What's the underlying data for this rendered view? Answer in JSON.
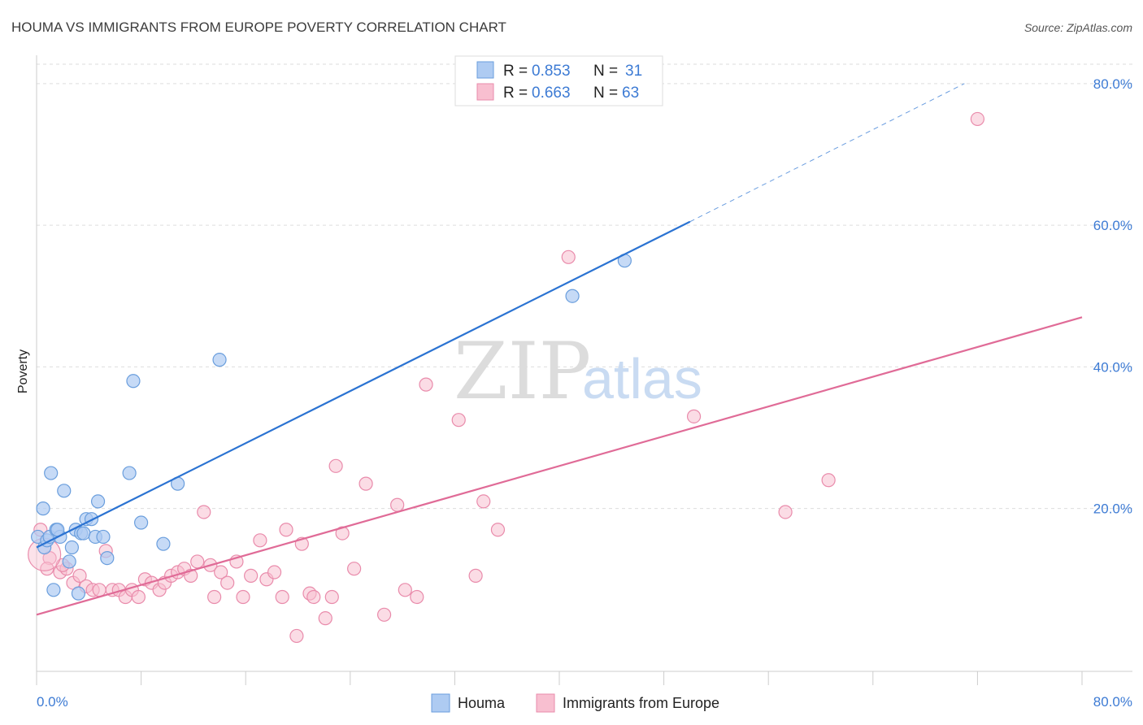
{
  "chart_data": {
    "type": "scatter",
    "title": "HOUMA VS IMMIGRANTS FROM EUROPE POVERTY CORRELATION CHART",
    "source": "Source: ZipAtlas.com",
    "ylabel": "Poverty",
    "xlim": [
      0,
      80
    ],
    "ylim": [
      -3,
      84
    ],
    "x_tick_labels": [
      "0.0%",
      "80.0%"
    ],
    "y_ticks": [
      20,
      40,
      60,
      80
    ],
    "y_tick_labels": [
      "20.0%",
      "40.0%",
      "60.0%",
      "80.0%"
    ],
    "watermark": {
      "zip": "ZIP",
      "atlas": "atlas"
    },
    "colors": {
      "houma_fill": "#aecbf2",
      "houma_stroke": "#6a9edd",
      "houma_line": "#2b73d2",
      "europe_fill": "#f8bfd0",
      "europe_stroke": "#e98bab",
      "europe_line": "#e06b97",
      "value_text": "#3d7bd4"
    },
    "legend": {
      "rows": [
        {
          "r_label": "R = ",
          "r_value": "0.853",
          "n_label": "N = ",
          "n_value": "31"
        },
        {
          "r_label": "R = ",
          "r_value": "0.663",
          "n_label": "N = ",
          "n_value": "63"
        }
      ]
    },
    "series": [
      {
        "name": "Houma",
        "regression": {
          "x0": 0,
          "y0": 14.5,
          "x1": 50,
          "y1": 60.5,
          "dash_to_x": 71,
          "dash_to_y": 80
        },
        "points": [
          [
            0.1,
            16.0
          ],
          [
            0.5,
            20.0
          ],
          [
            0.6,
            14.5
          ],
          [
            0.8,
            15.5
          ],
          [
            1.0,
            16.0
          ],
          [
            1.1,
            25.0
          ],
          [
            1.3,
            8.5
          ],
          [
            1.5,
            17.0
          ],
          [
            1.8,
            16.0
          ],
          [
            2.1,
            22.5
          ],
          [
            2.5,
            12.5
          ],
          [
            2.7,
            14.5
          ],
          [
            3.0,
            17.0
          ],
          [
            3.2,
            8.0
          ],
          [
            3.4,
            16.5
          ],
          [
            3.6,
            16.5
          ],
          [
            3.8,
            18.5
          ],
          [
            4.2,
            18.5
          ],
          [
            4.5,
            16.0
          ],
          [
            4.7,
            21.0
          ],
          [
            5.1,
            16.0
          ],
          [
            5.4,
            13.0
          ],
          [
            7.1,
            25.0
          ],
          [
            7.4,
            38.0
          ],
          [
            8.0,
            18.0
          ],
          [
            9.7,
            15.0
          ],
          [
            10.8,
            23.5
          ],
          [
            14.0,
            41.0
          ],
          [
            41.0,
            50.0
          ],
          [
            45.0,
            55.0
          ],
          [
            1.6,
            17.0
          ]
        ]
      },
      {
        "name": "Immigrants from Europe",
        "regression": {
          "x0": 0,
          "y0": 5.0,
          "x1": 80,
          "y1": 47.0
        },
        "points": [
          [
            0.3,
            17.0
          ],
          [
            1.0,
            13.0
          ],
          [
            1.8,
            11.0
          ],
          [
            2.3,
            11.5
          ],
          [
            2.8,
            9.5
          ],
          [
            3.3,
            10.5
          ],
          [
            3.8,
            9.0
          ],
          [
            4.3,
            8.5
          ],
          [
            4.8,
            8.5
          ],
          [
            5.3,
            14.0
          ],
          [
            5.8,
            8.5
          ],
          [
            6.3,
            8.5
          ],
          [
            6.8,
            7.5
          ],
          [
            7.3,
            8.5
          ],
          [
            7.8,
            7.5
          ],
          [
            8.3,
            10.0
          ],
          [
            8.8,
            9.5
          ],
          [
            9.4,
            8.5
          ],
          [
            9.8,
            9.5
          ],
          [
            10.3,
            10.5
          ],
          [
            10.8,
            11.0
          ],
          [
            11.3,
            11.5
          ],
          [
            11.8,
            10.5
          ],
          [
            12.3,
            12.5
          ],
          [
            12.8,
            19.5
          ],
          [
            13.3,
            12.0
          ],
          [
            13.6,
            7.5
          ],
          [
            14.1,
            11.0
          ],
          [
            14.6,
            9.5
          ],
          [
            15.3,
            12.5
          ],
          [
            15.8,
            7.5
          ],
          [
            16.4,
            10.5
          ],
          [
            17.1,
            15.5
          ],
          [
            17.6,
            10.0
          ],
          [
            18.2,
            11.0
          ],
          [
            18.8,
            7.5
          ],
          [
            19.1,
            17.0
          ],
          [
            19.9,
            2.0
          ],
          [
            20.3,
            15.0
          ],
          [
            20.9,
            8.0
          ],
          [
            21.2,
            7.5
          ],
          [
            22.1,
            4.5
          ],
          [
            22.6,
            7.5
          ],
          [
            22.9,
            26.0
          ],
          [
            23.4,
            16.5
          ],
          [
            24.3,
            11.5
          ],
          [
            25.2,
            23.5
          ],
          [
            26.6,
            5.0
          ],
          [
            27.6,
            20.5
          ],
          [
            28.2,
            8.5
          ],
          [
            29.1,
            7.5
          ],
          [
            29.8,
            37.5
          ],
          [
            32.3,
            32.5
          ],
          [
            33.6,
            10.5
          ],
          [
            34.2,
            21.0
          ],
          [
            35.3,
            17.0
          ],
          [
            40.7,
            55.5
          ],
          [
            50.3,
            33.0
          ],
          [
            57.3,
            19.5
          ],
          [
            60.6,
            24.0
          ],
          [
            72.0,
            75.0
          ],
          [
            0.8,
            11.5
          ],
          [
            2.0,
            12.0
          ]
        ]
      }
    ]
  }
}
